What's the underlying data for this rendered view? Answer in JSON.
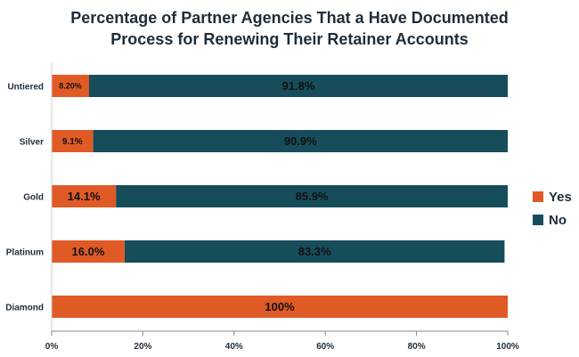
{
  "chart_data": {
    "type": "bar",
    "orientation": "horizontal",
    "stacked": true,
    "title_lines": [
      "Percentage of Partner Agencies That a Have Documented",
      "Process for Renewing Their Retainer Accounts"
    ],
    "categories": [
      "Untiered",
      "Silver",
      "Gold",
      "Platinum",
      "Diamond"
    ],
    "series": [
      {
        "name": "Yes",
        "color": "#e05a26",
        "values": [
          8.2,
          9.1,
          14.1,
          16.0,
          100
        ],
        "labels": [
          "8.20%",
          "9.1%",
          "14.1%",
          "16.0%",
          "100%"
        ]
      },
      {
        "name": "No",
        "color": "#174d5a",
        "values": [
          91.8,
          90.9,
          85.9,
          83.3,
          0
        ],
        "labels": [
          "91.8%",
          "90.9%",
          "85.9%",
          "83.3%",
          ""
        ]
      }
    ],
    "xlim": [
      0,
      100
    ],
    "xticks": [
      "0%",
      "20%",
      "40%",
      "60%",
      "80%",
      "100%"
    ],
    "grid": false,
    "legend_position": "right"
  }
}
